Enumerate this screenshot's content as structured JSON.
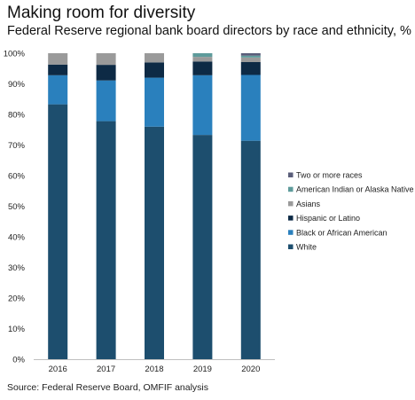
{
  "title": "Making room for diversity",
  "subtitle": "Federal Reserve regional bank board directors by race and ethnicity, %",
  "source": "Source: Federal Reserve Board, OMFIF analysis",
  "chart_data": {
    "type": "bar",
    "stacked": true,
    "categories": [
      "2016",
      "2017",
      "2018",
      "2019",
      "2020"
    ],
    "ylim": [
      0,
      100
    ],
    "yticks": [
      0,
      10,
      20,
      30,
      40,
      50,
      60,
      70,
      80,
      90,
      100
    ],
    "ytick_labels": [
      "0%",
      "10%",
      "20%",
      "30%",
      "40%",
      "50%",
      "60%",
      "70%",
      "80%",
      "90%",
      "100%"
    ],
    "grid": false,
    "legend_position": "right",
    "series": [
      {
        "name": "White",
        "color": "#1d4e6e",
        "values": [
          83.3,
          77.8,
          76.0,
          73.3,
          71.4
        ]
      },
      {
        "name": "Black or African American",
        "color": "#2a80bd",
        "values": [
          9.5,
          13.3,
          16.0,
          19.5,
          21.5
        ]
      },
      {
        "name": "Hispanic or Latino",
        "color": "#0d2a45",
        "values": [
          3.5,
          5.1,
          5.0,
          4.5,
          4.2
        ]
      },
      {
        "name": "Asians",
        "color": "#9a9a9a",
        "values": [
          3.7,
          3.8,
          3.0,
          1.5,
          1.5
        ]
      },
      {
        "name": "American Indian or Alaska Native",
        "color": "#5e9b9b",
        "values": [
          0,
          0,
          0,
          1.2,
          0.6
        ]
      },
      {
        "name": "Two or more races",
        "color": "#5a5e7a",
        "values": [
          0,
          0,
          0,
          0,
          0.8
        ]
      }
    ]
  }
}
